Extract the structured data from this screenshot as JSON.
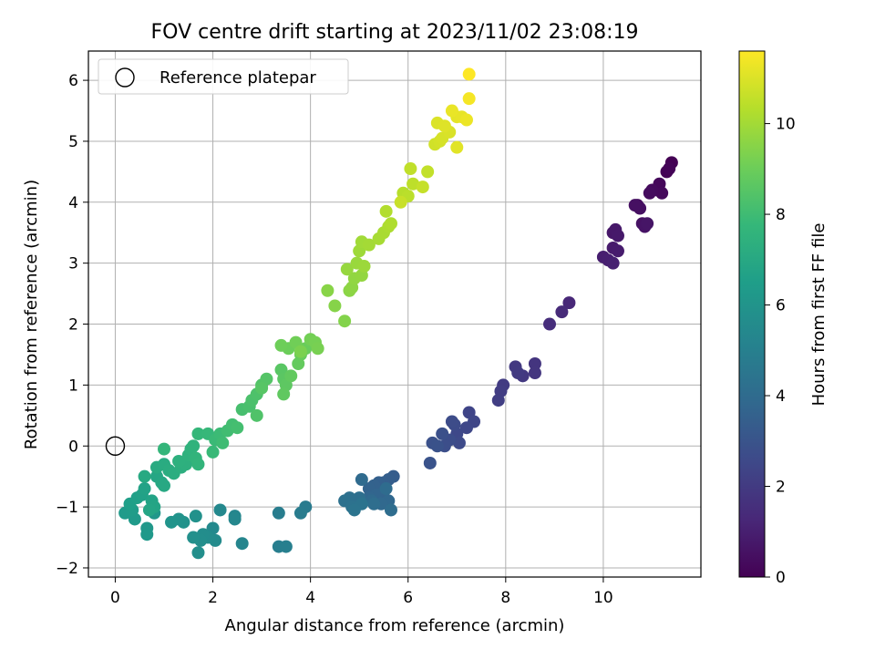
{
  "chart_data": {
    "type": "scatter",
    "title": "FOV centre drift starting at 2023/11/02 23:08:19",
    "xlabel": "Angular distance from reference (arcmin)",
    "ylabel": "Rotation from reference (arcmin)",
    "xlim": [
      -0.55,
      12.0
    ],
    "ylim": [
      -2.15,
      6.48
    ],
    "xticks": [
      0,
      2,
      4,
      6,
      8,
      10
    ],
    "yticks": [
      -2,
      -1,
      0,
      1,
      2,
      3,
      4,
      5,
      6
    ],
    "grid": true,
    "legend": {
      "location": "top-left",
      "entries": [
        "Reference platepar"
      ]
    },
    "reference_point": {
      "x": 0,
      "y": 0
    },
    "colorbar": {
      "label": "Hours from first FF file",
      "colormap": "viridis",
      "range": [
        0,
        11.6
      ],
      "ticks": [
        0,
        2,
        4,
        6,
        8,
        10
      ]
    },
    "colormap_stops": [
      "#440154",
      "#482878",
      "#3e4989",
      "#31688e",
      "#26828e",
      "#1f9e89",
      "#35b779",
      "#6ece58",
      "#b5de2b",
      "#fde725"
    ],
    "points": [
      [
        11.4,
        4.65,
        0.0
      ],
      [
        11.3,
        4.5,
        0.05
      ],
      [
        11.35,
        4.55,
        0.1
      ],
      [
        11.1,
        4.2,
        0.15
      ],
      [
        11.15,
        4.3,
        0.2
      ],
      [
        11.2,
        4.15,
        0.25
      ],
      [
        11.0,
        4.2,
        0.3
      ],
      [
        10.95,
        4.15,
        0.35
      ],
      [
        10.7,
        3.95,
        0.4
      ],
      [
        10.75,
        3.9,
        0.45
      ],
      [
        10.65,
        3.95,
        0.5
      ],
      [
        10.8,
        3.65,
        0.55
      ],
      [
        10.85,
        3.6,
        0.6
      ],
      [
        10.9,
        3.65,
        0.65
      ],
      [
        10.2,
        3.5,
        0.7
      ],
      [
        10.25,
        3.55,
        0.75
      ],
      [
        10.3,
        3.45,
        0.8
      ],
      [
        10.2,
        3.25,
        0.85
      ],
      [
        10.3,
        3.2,
        0.9
      ],
      [
        10.0,
        3.1,
        0.95
      ],
      [
        10.1,
        3.05,
        1.0
      ],
      [
        10.2,
        3.0,
        1.05
      ],
      [
        9.3,
        2.35,
        1.3
      ],
      [
        9.15,
        2.2,
        1.4
      ],
      [
        8.9,
        2.0,
        1.5
      ],
      [
        8.6,
        1.35,
        1.8
      ],
      [
        8.6,
        1.2,
        1.85
      ],
      [
        8.35,
        1.15,
        1.9
      ],
      [
        8.2,
        1.3,
        1.95
      ],
      [
        8.25,
        1.2,
        2.0
      ],
      [
        7.95,
        1.0,
        2.05
      ],
      [
        7.9,
        0.9,
        2.1
      ],
      [
        7.85,
        0.75,
        2.15
      ],
      [
        7.25,
        0.55,
        2.4
      ],
      [
        7.35,
        0.4,
        2.45
      ],
      [
        7.2,
        0.3,
        2.5
      ],
      [
        7.0,
        0.2,
        2.55
      ],
      [
        7.05,
        0.05,
        2.6
      ],
      [
        6.95,
        0.35,
        2.65
      ],
      [
        6.9,
        0.4,
        2.7
      ],
      [
        6.85,
        0.1,
        2.75
      ],
      [
        6.75,
        0.0,
        2.8
      ],
      [
        6.7,
        0.2,
        2.85
      ],
      [
        6.5,
        0.05,
        2.9
      ],
      [
        6.6,
        0.0,
        2.95
      ],
      [
        6.45,
        -0.28,
        3.0
      ],
      [
        5.7,
        -0.5,
        3.4
      ],
      [
        5.6,
        -0.55,
        3.45
      ],
      [
        5.5,
        -0.6,
        3.5
      ],
      [
        5.4,
        -0.6,
        3.55
      ],
      [
        5.3,
        -0.65,
        3.6
      ],
      [
        5.2,
        -0.7,
        3.65
      ],
      [
        5.5,
        -0.75,
        3.7
      ],
      [
        5.35,
        -0.8,
        3.75
      ],
      [
        5.2,
        -0.85,
        3.8
      ],
      [
        5.6,
        -0.9,
        3.85
      ],
      [
        5.45,
        -0.95,
        3.9
      ],
      [
        5.25,
        -0.9,
        3.95
      ],
      [
        5.05,
        -0.55,
        4.0
      ],
      [
        5.55,
        -0.7,
        4.05
      ],
      [
        5.65,
        -1.05,
        4.1
      ],
      [
        5.3,
        -0.95,
        4.15
      ],
      [
        5.0,
        -0.85,
        4.2
      ],
      [
        4.8,
        -0.85,
        4.25
      ],
      [
        4.7,
        -0.9,
        4.3
      ],
      [
        4.85,
        -1.0,
        4.35
      ],
      [
        5.05,
        -0.95,
        4.4
      ],
      [
        4.9,
        -1.05,
        4.45
      ],
      [
        3.9,
        -1.0,
        4.8
      ],
      [
        3.8,
        -1.1,
        4.85
      ],
      [
        3.35,
        -1.1,
        4.9
      ],
      [
        3.35,
        -1.65,
        4.95
      ],
      [
        3.5,
        -1.65,
        5.0
      ],
      [
        2.6,
        -1.6,
        5.3
      ],
      [
        2.45,
        -1.15,
        5.35
      ],
      [
        2.45,
        -1.2,
        5.4
      ],
      [
        2.15,
        -1.05,
        5.45
      ],
      [
        2.0,
        -1.35,
        5.5
      ],
      [
        2.05,
        -1.55,
        5.55
      ],
      [
        1.9,
        -1.5,
        5.6
      ],
      [
        1.8,
        -1.45,
        5.65
      ],
      [
        1.75,
        -1.55,
        5.7
      ],
      [
        1.7,
        -1.75,
        5.75
      ],
      [
        1.6,
        -1.5,
        5.8
      ],
      [
        1.65,
        -1.15,
        5.85
      ],
      [
        1.4,
        -1.25,
        5.9
      ],
      [
        1.3,
        -1.2,
        5.95
      ],
      [
        1.15,
        -1.25,
        6.0
      ],
      [
        0.8,
        -1.1,
        6.1
      ],
      [
        0.65,
        -1.35,
        6.15
      ],
      [
        0.65,
        -1.45,
        6.2
      ],
      [
        0.4,
        -1.2,
        6.25
      ],
      [
        0.2,
        -1.1,
        6.3
      ],
      [
        0.35,
        -1.05,
        6.35
      ],
      [
        0.3,
        -0.95,
        6.5
      ],
      [
        0.45,
        -0.85,
        6.55
      ],
      [
        0.55,
        -0.8,
        6.6
      ],
      [
        0.6,
        -0.7,
        6.65
      ],
      [
        0.75,
        -0.9,
        6.7
      ],
      [
        0.8,
        -1.0,
        6.75
      ],
      [
        0.7,
        -1.05,
        6.8
      ],
      [
        0.85,
        -0.5,
        6.85
      ],
      [
        0.95,
        -0.6,
        6.9
      ],
      [
        1.0,
        -0.65,
        6.95
      ],
      [
        0.6,
        -0.5,
        7.0
      ],
      [
        0.85,
        -0.35,
        7.05
      ],
      [
        1.0,
        -0.3,
        7.1
      ],
      [
        1.1,
        -0.4,
        7.15
      ],
      [
        1.2,
        -0.45,
        7.2
      ],
      [
        1.35,
        -0.35,
        7.25
      ],
      [
        1.45,
        -0.3,
        7.3
      ],
      [
        1.3,
        -0.25,
        7.35
      ],
      [
        1.5,
        -0.15,
        7.4
      ],
      [
        1.55,
        -0.05,
        7.45
      ],
      [
        1.6,
        0.0,
        7.5
      ],
      [
        1.65,
        -0.2,
        7.55
      ],
      [
        1.7,
        -0.3,
        7.6
      ],
      [
        1.0,
        -0.05,
        7.65
      ],
      [
        1.7,
        0.2,
        7.7
      ],
      [
        1.9,
        0.2,
        7.75
      ],
      [
        2.0,
        -0.1,
        7.8
      ],
      [
        2.05,
        0.1,
        7.85
      ],
      [
        2.15,
        0.2,
        7.9
      ],
      [
        2.2,
        0.05,
        7.95
      ],
      [
        2.3,
        0.25,
        8.0
      ],
      [
        2.4,
        0.35,
        8.05
      ],
      [
        2.5,
        0.3,
        8.1
      ],
      [
        2.6,
        0.6,
        8.15
      ],
      [
        2.75,
        0.65,
        8.2
      ],
      [
        2.8,
        0.75,
        8.25
      ],
      [
        2.9,
        0.85,
        8.3
      ],
      [
        2.9,
        0.5,
        8.35
      ],
      [
        3.0,
        1.0,
        8.4
      ],
      [
        3.1,
        1.1,
        8.45
      ],
      [
        3.0,
        0.95,
        8.5
      ],
      [
        3.4,
        1.25,
        8.55
      ],
      [
        3.45,
        1.1,
        8.6
      ],
      [
        3.5,
        1.0,
        8.65
      ],
      [
        3.45,
        0.85,
        8.7
      ],
      [
        3.6,
        1.15,
        8.75
      ],
      [
        3.75,
        1.35,
        8.8
      ],
      [
        3.8,
        1.5,
        8.85
      ],
      [
        3.9,
        1.6,
        8.9
      ],
      [
        3.55,
        1.6,
        8.95
      ],
      [
        3.4,
        1.65,
        9.0
      ],
      [
        3.7,
        1.7,
        9.05
      ],
      [
        4.0,
        1.75,
        9.1
      ],
      [
        4.1,
        1.7,
        9.15
      ],
      [
        4.15,
        1.6,
        9.2
      ],
      [
        3.8,
        1.55,
        9.25
      ],
      [
        4.7,
        2.05,
        9.4
      ],
      [
        4.5,
        2.3,
        9.45
      ],
      [
        4.35,
        2.55,
        9.5
      ],
      [
        4.8,
        2.55,
        9.55
      ],
      [
        4.85,
        2.6,
        9.6
      ],
      [
        4.9,
        2.75,
        9.65
      ],
      [
        5.05,
        2.8,
        9.7
      ],
      [
        4.75,
        2.9,
        9.75
      ],
      [
        4.95,
        3.0,
        9.8
      ],
      [
        5.1,
        2.95,
        9.85
      ],
      [
        5.0,
        3.2,
        9.9
      ],
      [
        5.05,
        3.35,
        9.95
      ],
      [
        5.2,
        3.3,
        10.0
      ],
      [
        5.4,
        3.4,
        10.05
      ],
      [
        5.5,
        3.5,
        10.1
      ],
      [
        5.6,
        3.6,
        10.15
      ],
      [
        5.65,
        3.65,
        10.2
      ],
      [
        5.55,
        3.85,
        10.25
      ],
      [
        5.9,
        4.15,
        10.35
      ],
      [
        6.0,
        4.1,
        10.4
      ],
      [
        6.1,
        4.3,
        10.45
      ],
      [
        6.05,
        4.55,
        10.5
      ],
      [
        6.4,
        4.5,
        10.55
      ],
      [
        6.3,
        4.25,
        10.6
      ],
      [
        5.85,
        4.0,
        10.65
      ],
      [
        6.55,
        4.95,
        10.8
      ],
      [
        6.65,
        5.0,
        10.85
      ],
      [
        6.7,
        5.05,
        10.9
      ],
      [
        6.85,
        5.15,
        10.95
      ],
      [
        6.6,
        5.3,
        11.0
      ],
      [
        6.75,
        5.25,
        11.05
      ],
      [
        7.0,
        4.9,
        11.1
      ],
      [
        7.0,
        5.4,
        11.15
      ],
      [
        7.1,
        5.4,
        11.2
      ],
      [
        6.9,
        5.5,
        11.25
      ],
      [
        7.2,
        5.35,
        11.3
      ],
      [
        7.25,
        5.7,
        11.45
      ],
      [
        7.25,
        6.1,
        11.6
      ]
    ]
  }
}
